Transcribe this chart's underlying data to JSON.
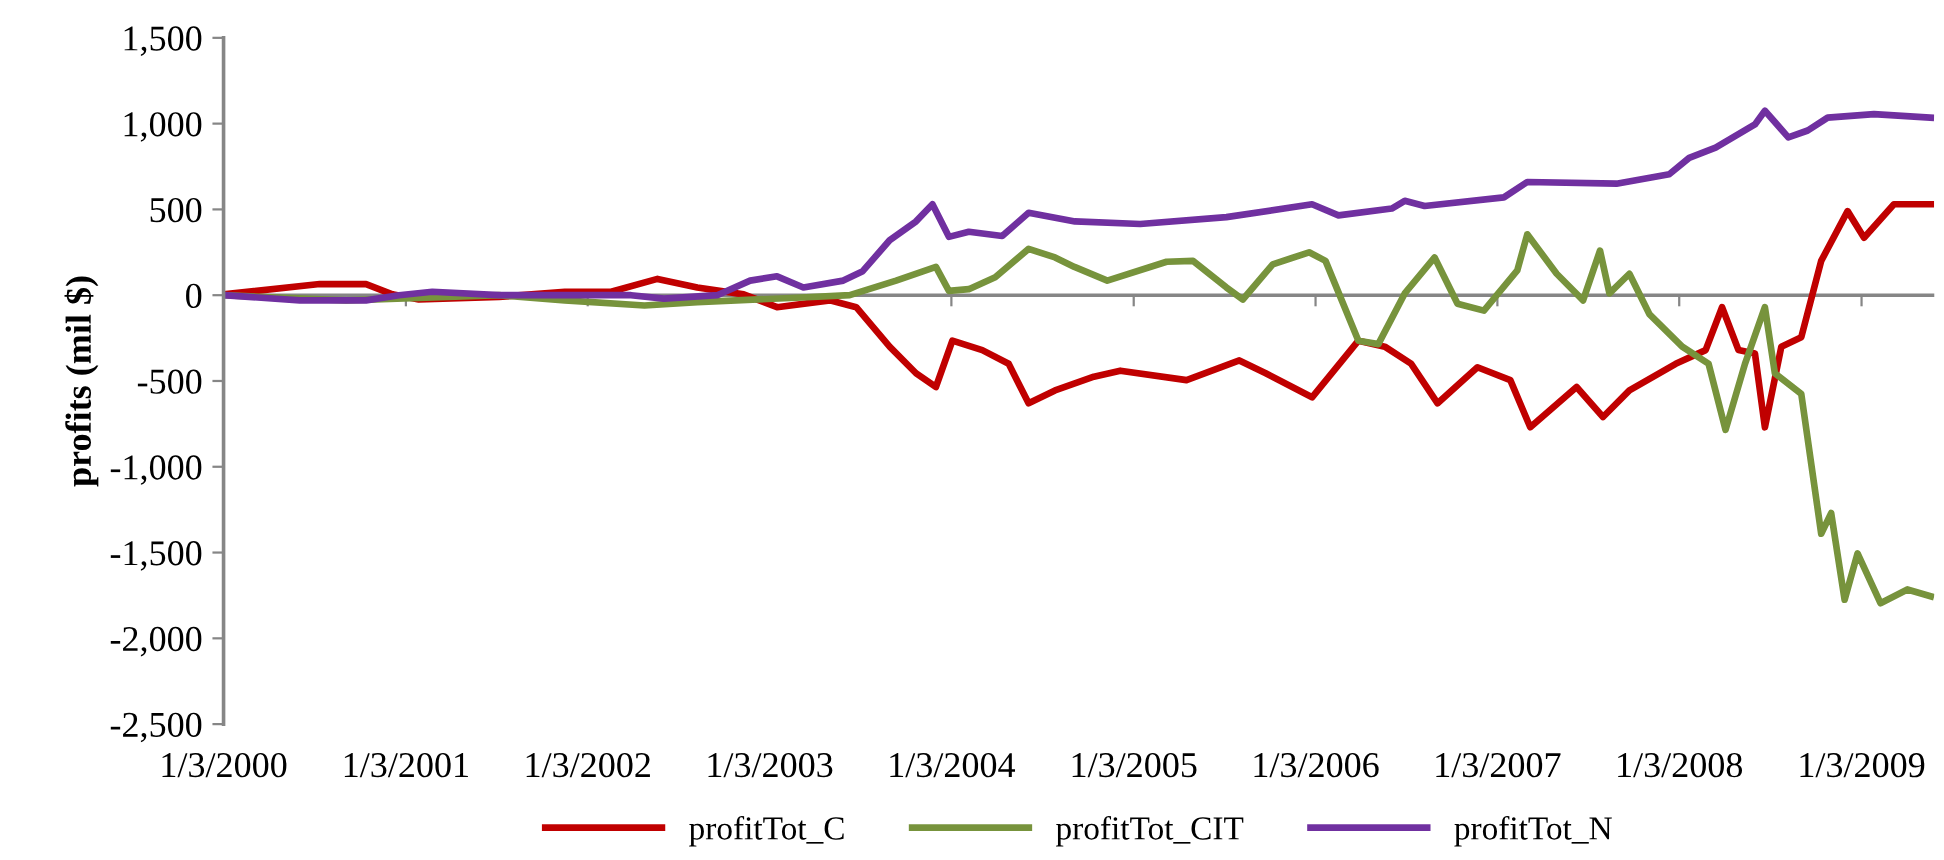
{
  "chart_data": {
    "type": "line",
    "ylabel": "profits (mil $)",
    "xlim": [
      "2000-01-03",
      "2009-05-29"
    ],
    "xticks": [
      {
        "value": "2000-01-03",
        "label": "1/3/2000"
      },
      {
        "value": "2001-01-03",
        "label": "1/3/2001"
      },
      {
        "value": "2002-01-03",
        "label": "1/3/2002"
      },
      {
        "value": "2003-01-03",
        "label": "1/3/2003"
      },
      {
        "value": "2004-01-03",
        "label": "1/3/2004"
      },
      {
        "value": "2005-01-03",
        "label": "1/3/2005"
      },
      {
        "value": "2006-01-03",
        "label": "1/3/2006"
      },
      {
        "value": "2007-01-03",
        "label": "1/3/2007"
      },
      {
        "value": "2008-01-03",
        "label": "1/3/2008"
      },
      {
        "value": "2009-01-03",
        "label": "1/3/2009"
      }
    ],
    "ylim": [
      -2500,
      1500
    ],
    "yticks": [
      {
        "value": -2500,
        "label": "-2,500"
      },
      {
        "value": -2000,
        "label": "-2,000"
      },
      {
        "value": -1500,
        "label": "-1,500"
      },
      {
        "value": -1000,
        "label": "-1,000"
      },
      -500,
      0,
      500,
      {
        "value": 1000,
        "label": "1,000"
      },
      {
        "value": 1500,
        "label": "1,500"
      }
    ],
    "grid": false,
    "ref_lines": [
      {
        "axis": "y",
        "value": 0,
        "color": "#868686"
      }
    ],
    "legend": "bottom",
    "marker": "none",
    "line_style": "solid",
    "series": [
      {
        "name": "profitTot_C",
        "color": "#c00000",
        "x": [
          "2000-01-03",
          "2000-07-14",
          "2000-10-15",
          "2000-12-07",
          "2001-01-29",
          "2001-07-09",
          "2001-11-18",
          "2002-02-19",
          "2002-05-23",
          "2002-08-11",
          "2002-11-12",
          "2003-01-18",
          "2003-05-04",
          "2003-06-26",
          "2003-09-01",
          "2003-10-24",
          "2003-12-03",
          "2004-01-05",
          "2004-03-05",
          "2004-04-27",
          "2004-06-06",
          "2004-07-29",
          "2004-10-15",
          "2004-12-07",
          "2005-04-19",
          "2005-08-03",
          "2005-09-25",
          "2005-12-27",
          "2006-03-30",
          "2006-05-22",
          "2006-07-14",
          "2006-09-05",
          "2006-11-24",
          "2007-01-29",
          "2007-03-10",
          "2007-06-11",
          "2007-08-03",
          "2007-09-25",
          "2007-12-27",
          "2008-02-25",
          "2008-03-29",
          "2008-05-01",
          "2008-06-03",
          "2008-06-23",
          "2008-07-26",
          "2008-09-04",
          "2008-10-14",
          "2008-12-06",
          "2009-01-08",
          "2009-03-09",
          "2009-05-22"
        ],
        "values": [
          5,
          65,
          65,
          5,
          -25,
          -10,
          20,
          20,
          95,
          45,
          5,
          -70,
          -30,
          -70,
          -300,
          -455,
          -535,
          -265,
          -320,
          -400,
          -630,
          -555,
          -475,
          -440,
          -495,
          -380,
          -455,
          -595,
          -265,
          -300,
          -400,
          -630,
          -420,
          -495,
          -770,
          -535,
          -710,
          -555,
          -400,
          -320,
          -70,
          -320,
          -340,
          -770,
          -300,
          -245,
          200,
          490,
          335,
          530,
          530
        ]
      },
      {
        "name": "profitTot_CIT",
        "color": "#77933c",
        "x": [
          "2000-01-03",
          "2000-09-05",
          "2001-07-09",
          "2001-11-18",
          "2002-04-27",
          "2002-08-11",
          "2003-02-26",
          "2003-06-13",
          "2003-09-14",
          "2003-12-03",
          "2003-12-29",
          "2004-02-07",
          "2004-03-31",
          "2004-06-06",
          "2004-07-29",
          "2004-09-06",
          "2004-11-11",
          "2005-03-10",
          "2005-05-02",
          "2005-07-08",
          "2005-08-10",
          "2005-10-09",
          "2005-12-21",
          "2006-01-23",
          "2006-03-30",
          "2006-05-09",
          "2006-07-01",
          "2006-08-30",
          "2006-10-15",
          "2006-12-07",
          "2007-02-12",
          "2007-03-04",
          "2007-05-02",
          "2007-06-24",
          "2007-07-28",
          "2007-08-16",
          "2007-09-25",
          "2007-11-04",
          "2008-01-09",
          "2008-03-02",
          "2008-04-05",
          "2008-05-14",
          "2008-06-23",
          "2008-07-13",
          "2008-09-04",
          "2008-10-14",
          "2008-11-03",
          "2008-11-30",
          "2008-12-26",
          "2009-02-10",
          "2009-04-05",
          "2009-05-22"
        ],
        "values": [
          0,
          -30,
          0,
          -30,
          -60,
          -40,
          -15,
          0,
          85,
          165,
          25,
          35,
          105,
          270,
          220,
          165,
          85,
          195,
          200,
          45,
          -25,
          180,
          250,
          200,
          -265,
          -285,
          10,
          220,
          -50,
          -90,
          145,
          355,
          125,
          -30,
          260,
          10,
          125,
          -110,
          -300,
          -400,
          -785,
          -400,
          -70,
          -455,
          -575,
          -1390,
          -1270,
          -1775,
          -1505,
          -1795,
          -1715,
          -1755
        ]
      },
      {
        "name": "profitTot_N",
        "color": "#7030a0",
        "x": [
          "2000-01-03",
          "2000-06-04",
          "2000-10-15",
          "2000-12-20",
          "2001-02-25",
          "2001-07-09",
          "2001-11-18",
          "2002-03-31",
          "2002-06-05",
          "2002-09-20",
          "2002-11-25",
          "2003-01-18",
          "2003-03-12",
          "2003-05-31",
          "2003-07-09",
          "2003-09-01",
          "2003-10-24",
          "2003-11-26",
          "2003-12-29",
          "2004-02-07",
          "2004-04-14",
          "2004-06-06",
          "2004-09-07",
          "2005-01-16",
          "2005-07-08",
          "2005-12-27",
          "2006-02-18",
          "2006-06-05",
          "2006-07-01",
          "2006-08-10",
          "2007-01-16",
          "2007-03-04",
          "2007-08-30",
          "2007-12-14",
          "2008-01-23",
          "2008-03-16",
          "2008-06-03",
          "2008-06-23",
          "2008-08-09",
          "2008-09-17",
          "2008-10-27",
          "2009-01-28",
          "2009-05-22"
        ],
        "values": [
          0,
          -30,
          -30,
          0,
          20,
          0,
          0,
          0,
          -20,
          0,
          85,
          110,
          45,
          85,
          140,
          320,
          430,
          530,
          340,
          370,
          345,
          480,
          430,
          415,
          455,
          530,
          465,
          505,
          550,
          520,
          570,
          660,
          650,
          705,
          800,
          860,
          995,
          1075,
          920,
          960,
          1035,
          1055,
          1035
        ]
      }
    ]
  }
}
